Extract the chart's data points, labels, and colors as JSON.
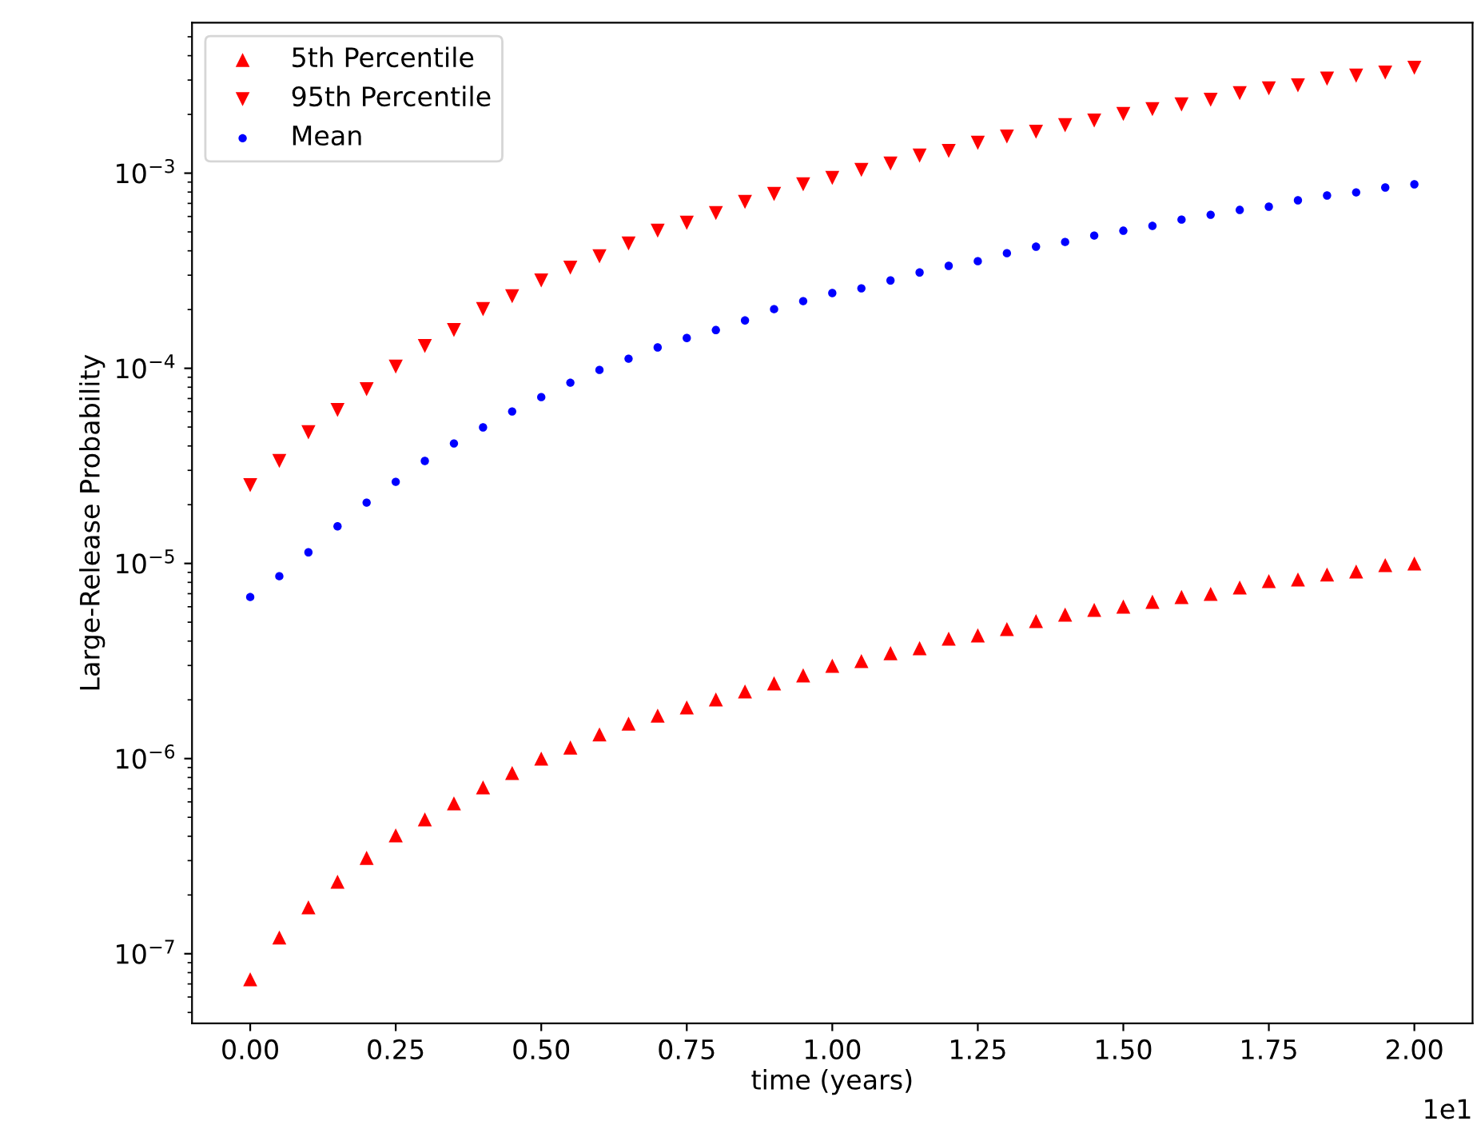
{
  "chart_data": {
    "type": "scatter",
    "xlabel": "time (years)",
    "ylabel": "Large-Release Probability",
    "log": "y",
    "legend": "top left",
    "grid": false,
    "x": [
      0,
      0.05,
      0.1,
      0.15,
      0.2,
      0.25,
      0.3,
      0.35,
      0.4,
      0.45,
      0.5,
      0.55,
      0.6,
      0.65,
      0.7,
      0.75,
      0.8,
      0.85,
      0.9,
      0.95,
      1.0,
      1.05,
      1.1,
      1.15,
      1.2,
      1.25,
      1.3,
      1.35,
      1.4,
      1.45,
      1.5,
      1.55,
      1.6,
      1.65,
      1.7,
      1.75,
      1.8,
      1.85,
      1.9,
      1.95,
      2.0
    ],
    "xlim": [
      -0.1,
      2.1
    ],
    "xticks": [
      {
        "value": 0,
        "label": "0.00"
      },
      {
        "value": 0.25,
        "label": "0.25"
      },
      {
        "value": 0.5,
        "label": "0.50"
      },
      {
        "value": 0.75,
        "label": "0.75"
      },
      {
        "value": 1.0,
        "label": "1.00"
      },
      {
        "value": 1.25,
        "label": "1.25"
      },
      {
        "value": 1.5,
        "label": "1.50"
      },
      {
        "value": 1.75,
        "label": "1.75"
      },
      {
        "value": 2.0,
        "label": "2.00"
      }
    ],
    "ylim": [
      4.4e-08,
      0.0059
    ],
    "yticks": [
      {
        "value": 1e-07,
        "label": "10$^{−7}$"
      },
      {
        "value": 1e-06,
        "label": "10$^{−6}$"
      },
      {
        "value": 1e-05,
        "label": "10$^{−5}$"
      },
      {
        "value": 0.0001,
        "label": "10$^{−4}$"
      },
      {
        "value": 0.001,
        "label": "10$^{−3}$"
      }
    ],
    "annotations": [
      "1e1"
    ],
    "series": [
      {
        "name": "5th Percentile",
        "color": "#ff0000",
        "marker": "triangle",
        "values": [
          7.4e-08,
          1.21e-07,
          1.73e-07,
          2.34e-07,
          3.1e-07,
          4.04e-07,
          4.88e-07,
          5.89e-07,
          7.12e-07,
          8.44e-07,
          1e-06,
          1.14e-06,
          1.33e-06,
          1.51e-06,
          1.66e-06,
          1.83e-06,
          2.01e-06,
          2.21e-06,
          2.43e-06,
          2.67e-06,
          2.99e-06,
          3.16e-06,
          3.47e-06,
          3.68e-06,
          4.12e-06,
          4.28e-06,
          4.61e-06,
          5.07e-06,
          5.47e-06,
          5.78e-06,
          6.01e-06,
          6.36e-06,
          6.73e-06,
          6.98e-06,
          7.53e-06,
          8.12e-06,
          8.28e-06,
          8.77e-06,
          9.1e-06,
          9.81e-06,
          1e-05
        ]
      },
      {
        "name": "95th Percentile",
        "color": "#ff0000",
        "marker": "triangle_down",
        "values": [
          2.52e-05,
          3.35e-05,
          4.7e-05,
          6.12e-05,
          7.82e-05,
          0.000102,
          0.00013,
          0.000157,
          0.000201,
          0.000234,
          0.000282,
          0.000328,
          0.000375,
          0.000436,
          0.000507,
          0.000557,
          0.000624,
          0.000712,
          0.000782,
          0.000877,
          0.000945,
          0.00104,
          0.00112,
          0.00123,
          0.0013,
          0.00143,
          0.00154,
          0.00163,
          0.00176,
          0.00186,
          0.00201,
          0.00213,
          0.00225,
          0.00238,
          0.00257,
          0.00272,
          0.00282,
          0.00305,
          0.00316,
          0.00328,
          0.00347
        ]
      },
      {
        "name": "Mean",
        "color": "#0000ff",
        "marker": "circle",
        "values": [
          6.73e-06,
          8.6e-06,
          1.14e-05,
          1.55e-05,
          2.05e-05,
          2.62e-05,
          3.35e-05,
          4.12e-05,
          4.98e-05,
          6.01e-05,
          7.12e-05,
          8.44e-05,
          9.81e-05,
          0.000112,
          0.000128,
          0.000143,
          0.000157,
          0.000176,
          0.000201,
          0.000221,
          0.000243,
          0.000257,
          0.000282,
          0.00031,
          0.000335,
          0.000354,
          0.000389,
          0.00042,
          0.000444,
          0.000479,
          0.000507,
          0.000537,
          0.000578,
          0.000612,
          0.000648,
          0.000673,
          0.000726,
          0.000768,
          0.000797,
          0.000844,
          0.000877
        ]
      }
    ]
  }
}
